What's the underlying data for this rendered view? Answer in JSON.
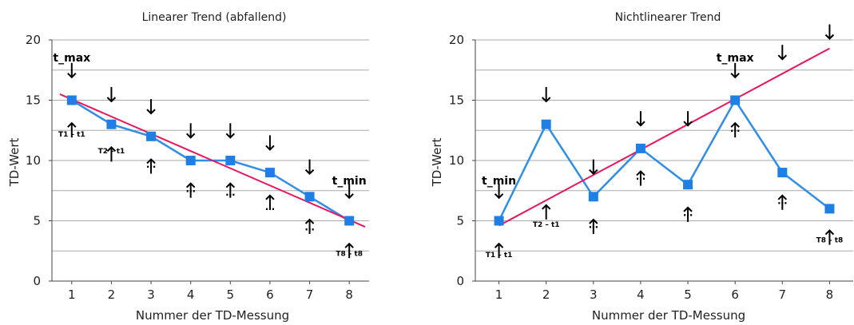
{
  "colors": {
    "series": "#2e8ee8",
    "marker": "#1f7fe5",
    "trend": "#e8175d",
    "grid": "#aaaaaa",
    "axis": "#444444"
  },
  "chart_data": [
    {
      "type": "line",
      "title": "Linearer Trend (abfallend)",
      "xlabel": "Nummer der TD-Messung",
      "ylabel": "TD-Wert",
      "categories": [
        "1",
        "2",
        "3",
        "4",
        "5",
        "6",
        "7",
        "8"
      ],
      "yticks": [
        "0",
        "5",
        "10",
        "15",
        "20"
      ],
      "ylim": [
        0,
        20
      ],
      "xlim": [
        0.5,
        8.5
      ],
      "grid": true,
      "series": [
        {
          "x": [
            1,
            2,
            3,
            4,
            5,
            6,
            7,
            8
          ],
          "values": [
            15,
            13,
            12,
            10,
            10,
            9,
            7,
            5
          ]
        }
      ],
      "trendline": {
        "from": [
          0.7,
          15.5
        ],
        "to": [
          8.4,
          4.5
        ]
      },
      "annotations": [
        {
          "text": "t_max",
          "x": 1,
          "kind": "big",
          "label_y": 18.2
        },
        {
          "text": "T1 – t1",
          "x": 1,
          "kind": "small",
          "label_y": 12.0
        },
        {
          "text": "T2 – t1",
          "x": 2,
          "kind": "small",
          "label_y": 10.6
        },
        {
          "text": "…",
          "x": 3,
          "kind": "dots",
          "label_y": 9.4
        },
        {
          "text": "…",
          "x": 4,
          "kind": "dots",
          "label_y": 7.4
        },
        {
          "text": "…",
          "x": 5,
          "kind": "dots",
          "label_y": 7.1
        },
        {
          "text": "…",
          "x": 6,
          "kind": "dots",
          "label_y": 5.9
        },
        {
          "text": "…",
          "x": 7,
          "kind": "dots",
          "label_y": 4.2
        },
        {
          "text": "t_min",
          "x": 8,
          "kind": "big",
          "label_y": 8.0
        },
        {
          "text": "T8 – t8",
          "x": 8,
          "kind": "small",
          "label_y": 2.1
        }
      ],
      "down_arrows": [
        [
          1,
          16.9
        ],
        [
          2,
          14.9
        ],
        [
          3,
          13.9
        ],
        [
          4,
          11.9
        ],
        [
          5,
          11.9
        ],
        [
          6,
          10.9
        ],
        [
          7,
          8.9
        ],
        [
          8,
          6.9
        ]
      ],
      "up_arrows": [
        [
          1,
          13.1
        ],
        [
          2,
          11.1
        ],
        [
          3,
          10.1
        ],
        [
          4,
          8.1
        ],
        [
          5,
          8.1
        ],
        [
          6,
          7.1
        ],
        [
          7,
          5.1
        ],
        [
          8,
          3.1
        ]
      ]
    },
    {
      "type": "line",
      "title": "Nichtlinearer Trend",
      "xlabel": "Nummer der TD-Messung",
      "ylabel": "TD-Wert",
      "categories": [
        "1",
        "2",
        "3",
        "4",
        "5",
        "6",
        "7",
        "8"
      ],
      "yticks": [
        "0",
        "5",
        "10",
        "15",
        "20"
      ],
      "ylim": [
        0,
        20
      ],
      "xlim": [
        0.5,
        8.5
      ],
      "grid": true,
      "series": [
        {
          "x": [
            1,
            2,
            3,
            4,
            5,
            6,
            7,
            8
          ],
          "values": [
            5,
            13,
            7,
            11,
            8,
            15,
            9,
            6
          ]
        }
      ],
      "trendline": {
        "from": [
          1.0,
          4.6
        ],
        "to": [
          8.0,
          19.3
        ]
      },
      "annotations": [
        {
          "text": "t_min",
          "x": 1,
          "kind": "big",
          "label_y": 8.0
        },
        {
          "text": "T1 – t1",
          "x": 1,
          "kind": "small",
          "label_y": 2.0
        },
        {
          "text": "T2 – t1",
          "x": 2,
          "kind": "small",
          "label_y": 4.5
        },
        {
          "text": "…",
          "x": 3,
          "kind": "dots",
          "label_y": 4.4
        },
        {
          "text": "…",
          "x": 4,
          "kind": "dots",
          "label_y": 8.4
        },
        {
          "text": "…",
          "x": 5,
          "kind": "dots",
          "label_y": 5.4
        },
        {
          "text": "t_max",
          "x": 6,
          "kind": "big",
          "label_y": 18.2
        },
        {
          "text": "…",
          "x": 6,
          "kind": "dots",
          "label_y": 12.4
        },
        {
          "text": "…",
          "x": 7,
          "kind": "dots",
          "label_y": 6.4
        },
        {
          "text": "T8 – t8",
          "x": 8,
          "kind": "small",
          "label_y": 3.2
        }
      ],
      "down_arrows": [
        [
          1,
          6.9
        ],
        [
          2,
          14.9
        ],
        [
          3,
          8.9
        ],
        [
          4,
          12.9
        ],
        [
          5,
          12.9
        ],
        [
          6,
          16.9
        ],
        [
          7,
          18.4
        ],
        [
          8,
          20.1
        ]
      ],
      "up_arrows": [
        [
          1,
          3.1
        ],
        [
          2,
          6.3
        ],
        [
          3,
          5.1
        ],
        [
          4,
          9.1
        ],
        [
          5,
          6.1
        ],
        [
          6,
          13.1
        ],
        [
          7,
          7.1
        ],
        [
          8,
          4.2
        ]
      ]
    }
  ]
}
